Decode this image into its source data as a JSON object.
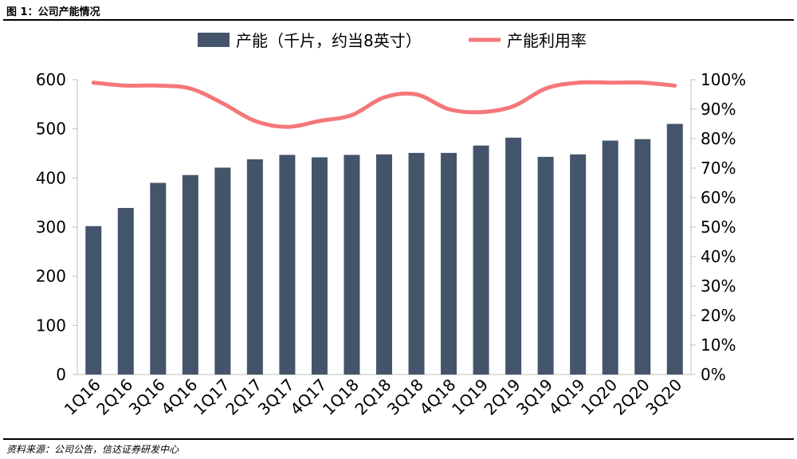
{
  "figure_title": "图 1：公司产能情况",
  "source": "资料来源：公司公告，信达证券研发中心",
  "chart_data": {
    "type": "bar",
    "categories": [
      "1Q16",
      "2Q16",
      "3Q16",
      "4Q16",
      "1Q17",
      "2Q17",
      "3Q17",
      "4Q17",
      "1Q18",
      "2Q18",
      "3Q18",
      "4Q18",
      "1Q19",
      "2Q19",
      "3Q19",
      "4Q19",
      "1Q20",
      "2Q20",
      "3Q20"
    ],
    "series": [
      {
        "name": "产能（千片，约当8英寸）",
        "type": "bar",
        "axis": "left",
        "color": "#44546a",
        "values": [
          302,
          339,
          390,
          406,
          421,
          438,
          447,
          442,
          447,
          448,
          451,
          451,
          466,
          482,
          443,
          448,
          476,
          479,
          510
        ]
      },
      {
        "name": "产能利用率",
        "type": "line",
        "axis": "right",
        "color": "#f4777a",
        "values": [
          0.99,
          0.98,
          0.98,
          0.97,
          0.92,
          0.86,
          0.84,
          0.86,
          0.88,
          0.94,
          0.95,
          0.9,
          0.89,
          0.91,
          0.97,
          0.99,
          0.99,
          0.99,
          0.98
        ]
      }
    ],
    "ylim_left": [
      0,
      600
    ],
    "yticks_left": [
      "0",
      "100",
      "200",
      "300",
      "400",
      "500",
      "600"
    ],
    "ylim_right": [
      0,
      1
    ],
    "yticks_right": [
      "0%",
      "10%",
      "20%",
      "30%",
      "40%",
      "50%",
      "60%",
      "70%",
      "80%",
      "90%",
      "100%"
    ],
    "legend_position": "top",
    "grid": false
  }
}
